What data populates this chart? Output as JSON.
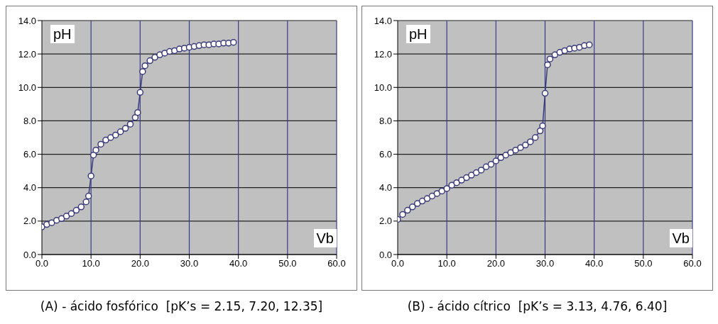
{
  "chart_data": [
    {
      "type": "line",
      "title": "(A) - ácido fosfórico  [pK’s = 2.15, 7.20, 12.35]",
      "xlabel": "Vb",
      "ylabel": "pH",
      "marker": "circle",
      "grid": true,
      "xlim": [
        0,
        60
      ],
      "xticks": [
        {
          "value": 0,
          "label": "0.0"
        },
        {
          "value": 10,
          "label": "10.0"
        },
        {
          "value": 20,
          "label": "20.0"
        },
        {
          "value": 30,
          "label": "30.0"
        },
        {
          "value": 40,
          "label": "40.0"
        },
        {
          "value": 50,
          "label": "50.0"
        },
        {
          "value": 60,
          "label": "60.0"
        }
      ],
      "ylim": [
        0,
        14
      ],
      "yticks": [
        {
          "value": 0,
          "label": "0.0"
        },
        {
          "value": 2,
          "label": "2.0"
        },
        {
          "value": 4,
          "label": "4.0"
        },
        {
          "value": 6,
          "label": "6.0"
        },
        {
          "value": 8,
          "label": "8.0"
        },
        {
          "value": 10,
          "label": "10.0"
        },
        {
          "value": 12,
          "label": "12.0"
        },
        {
          "value": 14,
          "label": "14.0"
        }
      ],
      "series": [
        {
          "color": "#3b3b7a",
          "x": [
            0,
            1,
            2,
            3,
            4,
            5,
            6,
            7,
            8,
            9,
            9.5,
            10,
            10.5,
            11,
            12,
            13,
            14,
            15,
            16,
            17,
            18,
            19,
            19.5,
            20,
            20.5,
            21,
            22,
            23,
            24,
            25,
            26,
            27,
            28,
            29,
            30,
            31,
            32,
            33,
            34,
            35,
            36,
            37,
            38,
            39
          ],
          "values": [
            1.65,
            1.8,
            1.9,
            2.05,
            2.15,
            2.3,
            2.45,
            2.65,
            2.85,
            3.15,
            3.5,
            4.7,
            5.95,
            6.25,
            6.6,
            6.85,
            7.0,
            7.15,
            7.35,
            7.55,
            7.8,
            8.2,
            8.5,
            9.7,
            10.95,
            11.3,
            11.6,
            11.8,
            11.95,
            12.05,
            12.15,
            12.2,
            12.3,
            12.35,
            12.4,
            12.45,
            12.5,
            12.55,
            12.55,
            12.6,
            12.6,
            12.65,
            12.65,
            12.7
          ]
        }
      ]
    },
    {
      "type": "line",
      "title": "(B) - ácido cítrico  [pK’s = 3.13, 4.76, 6.40]",
      "xlabel": "Vb",
      "ylabel": "pH",
      "marker": "circle",
      "grid": true,
      "xlim": [
        0,
        60
      ],
      "xticks": [
        {
          "value": 0,
          "label": "0.0"
        },
        {
          "value": 10,
          "label": "10.0"
        },
        {
          "value": 20,
          "label": "20.0"
        },
        {
          "value": 30,
          "label": "30.0"
        },
        {
          "value": 40,
          "label": "40.0"
        },
        {
          "value": 50,
          "label": "50.0"
        },
        {
          "value": 60,
          "label": "60.0"
        }
      ],
      "ylim": [
        0,
        14
      ],
      "yticks": [
        {
          "value": 0,
          "label": "0.0"
        },
        {
          "value": 2,
          "label": "2.0"
        },
        {
          "value": 4,
          "label": "4.0"
        },
        {
          "value": 6,
          "label": "6.0"
        },
        {
          "value": 8,
          "label": "8.0"
        },
        {
          "value": 10,
          "label": "10.0"
        },
        {
          "value": 12,
          "label": "12.0"
        },
        {
          "value": 14,
          "label": "14.0"
        }
      ],
      "series": [
        {
          "color": "#3b3b7a",
          "x": [
            0,
            1,
            2,
            3,
            4,
            5,
            6,
            7,
            8,
            9,
            10,
            11,
            12,
            13,
            14,
            15,
            16,
            17,
            18,
            19,
            20,
            21,
            22,
            23,
            24,
            25,
            26,
            27,
            28,
            29,
            29.5,
            30,
            30.5,
            31,
            32,
            33,
            34,
            35,
            36,
            37,
            38,
            39
          ],
          "values": [
            2.1,
            2.4,
            2.65,
            2.85,
            3.05,
            3.2,
            3.35,
            3.5,
            3.65,
            3.8,
            3.95,
            4.15,
            4.3,
            4.45,
            4.6,
            4.75,
            4.9,
            5.05,
            5.25,
            5.4,
            5.6,
            5.8,
            5.95,
            6.1,
            6.25,
            6.4,
            6.55,
            6.75,
            7.0,
            7.4,
            7.7,
            9.65,
            11.35,
            11.7,
            11.95,
            12.1,
            12.2,
            12.3,
            12.35,
            12.4,
            12.5,
            12.55
          ]
        }
      ]
    }
  ]
}
